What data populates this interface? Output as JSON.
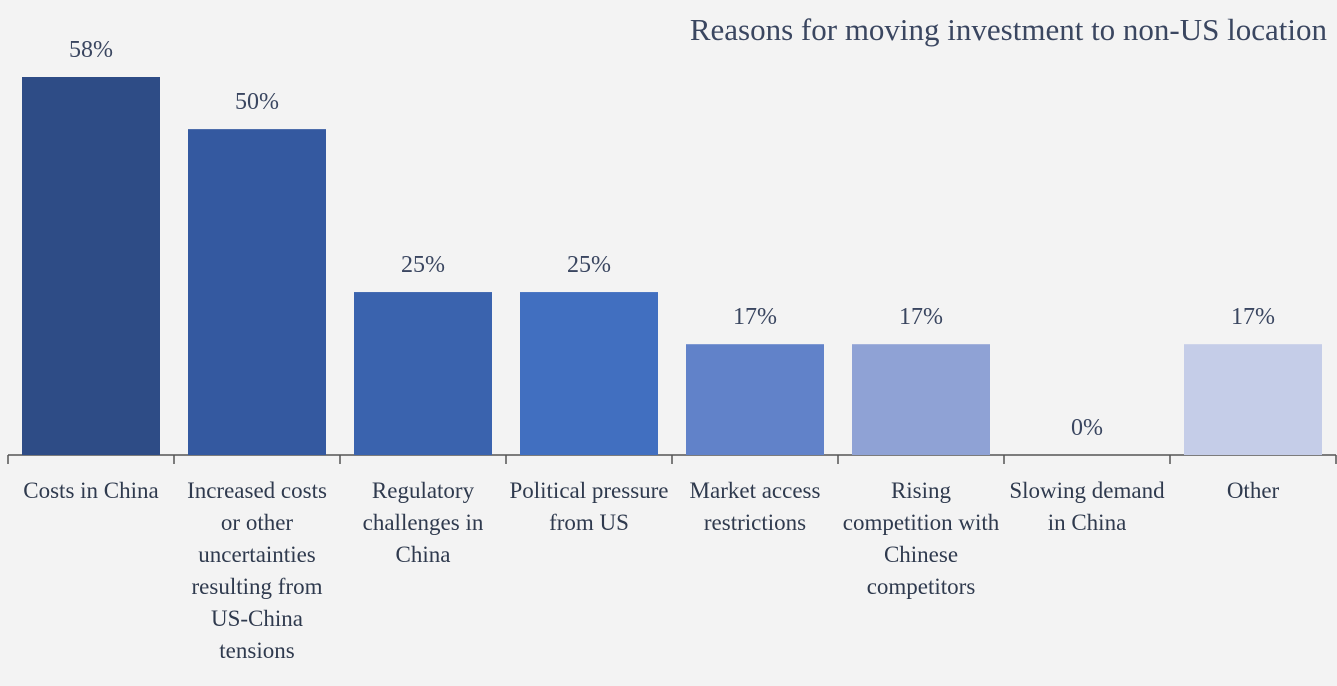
{
  "chart_data": {
    "type": "bar",
    "title": "Reasons for moving investment to non-US location",
    "categories": [
      "Costs in China",
      "Increased costs or other uncertainties resulting from US-China tensions",
      "Regulatory challenges in China",
      "Political pressure from US",
      "Market access restrictions",
      "Rising competition with Chinese competitors",
      "Slowing demand in China",
      "Other"
    ],
    "values": [
      58,
      50,
      25,
      25,
      17,
      17,
      0,
      17
    ],
    "value_labels": [
      "58%",
      "50%",
      "25%",
      "25%",
      "17%",
      "17%",
      "0%",
      "17%"
    ],
    "colors": [
      "#2e4c86",
      "#3459a0",
      "#3a63ae",
      "#416fc0",
      "#6182c9",
      "#8fa2d5",
      "#aab8e0",
      "#c5cde8"
    ]
  }
}
